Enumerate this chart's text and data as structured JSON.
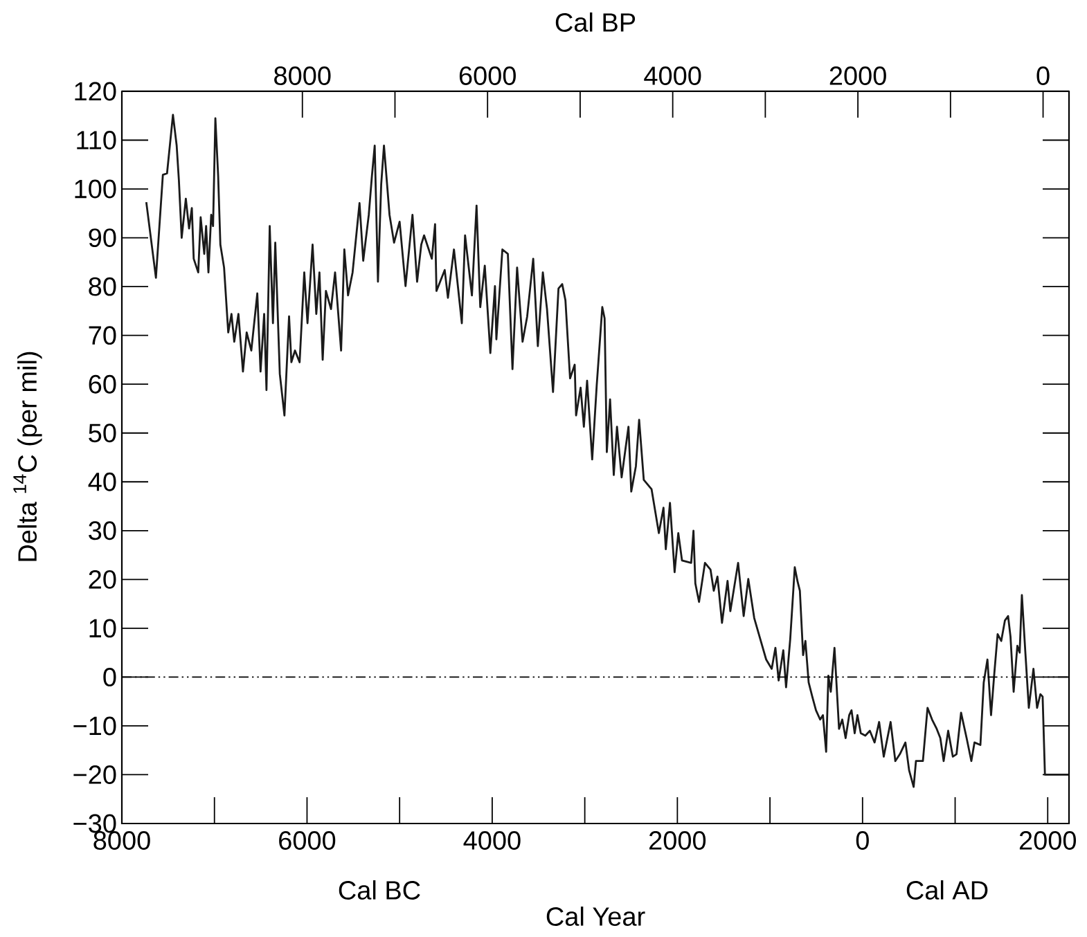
{
  "chart_data": {
    "type": "line",
    "xlabel": "Cal Year",
    "x2label": "Cal BP",
    "ylabel": "Delta $^{14}$C (per mil)",
    "annotations": [
      "Cal BC",
      "Cal AD"
    ],
    "xlim": [
      -8000,
      2230
    ],
    "xticks": [
      {
        "value": -8000,
        "label": "8000"
      },
      {
        "value": -6000,
        "label": "6000"
      },
      {
        "value": -4000,
        "label": "4000"
      },
      {
        "value": -2000,
        "label": "2000"
      },
      0,
      2000
    ],
    "x2lim": [
      9950,
      -280
    ],
    "x2ticks": [
      8000,
      6000,
      4000,
      2000,
      0
    ],
    "ylim": [
      -30,
      120
    ],
    "yticks": [
      {
        "value": -30,
        "label": "−30"
      },
      {
        "value": -20,
        "label": "−20"
      },
      {
        "value": -10,
        "label": "−10"
      },
      0,
      10,
      20,
      30,
      40,
      50,
      60,
      70,
      80,
      90,
      100,
      110,
      120
    ],
    "grid": false,
    "marker": "none",
    "line_style": "solid",
    "ref_lines": [
      {
        "axis": "y",
        "value": 0,
        "line_style": "dashed"
      }
    ],
    "series": [
      {
        "color": "#1a1a1a",
        "x": [
          -7736,
          -7632,
          -7557,
          -7512,
          -7448,
          -7408,
          -7384,
          -7354,
          -7309,
          -7274,
          -7244,
          -7224,
          -7175,
          -7149,
          -7110,
          -7090,
          -7065,
          -7035,
          -7015,
          -6990,
          -6960,
          -6936,
          -6896,
          -6851,
          -6816,
          -6786,
          -6741,
          -6692,
          -6652,
          -6602,
          -6537,
          -6502,
          -6463,
          -6438,
          -6403,
          -6368,
          -6343,
          -6294,
          -6244,
          -6194,
          -6169,
          -6130,
          -6080,
          -6030,
          -5995,
          -5940,
          -5900,
          -5866,
          -5831,
          -5796,
          -5741,
          -5697,
          -5632,
          -5597,
          -5557,
          -5508,
          -5433,
          -5393,
          -5333,
          -5299,
          -5269,
          -5234,
          -5199,
          -5169,
          -5109,
          -5060,
          -5000,
          -4936,
          -4861,
          -4811,
          -4766,
          -4736,
          -4652,
          -4617,
          -4602,
          -4513,
          -4478,
          -4413,
          -4328,
          -4293,
          -4219,
          -4169,
          -4129,
          -4080,
          -4020,
          -3970,
          -3955,
          -3890,
          -3831,
          -3781,
          -3731,
          -3672,
          -3622,
          -3557,
          -3507,
          -3453,
          -3408,
          -3343,
          -3284,
          -3244,
          -3209,
          -3159,
          -3109,
          -3094,
          -3045,
          -3010,
          -2975,
          -2920,
          -2871,
          -2811,
          -2786,
          -2762,
          -2727,
          -2687,
          -2652,
          -2602,
          -2528,
          -2498,
          -2448,
          -2413,
          -2363,
          -2279,
          -2200,
          -2150,
          -2125,
          -2080,
          -2030,
          -1990,
          -1950,
          -1851,
          -1826,
          -1806,
          -1766,
          -1702,
          -1642,
          -1607,
          -1567,
          -1518,
          -1458,
          -1428,
          -1344,
          -1284,
          -1234,
          -1170,
          -1120,
          -1041,
          -981,
          -941,
          -906,
          -856,
          -826,
          -781,
          -732,
          -702,
          -677,
          -642,
          -617,
          -582,
          -543,
          -503,
          -458,
          -428,
          -393,
          -369,
          -343,
          -303,
          -254,
          -219,
          -183,
          -144,
          -119,
          -85,
          -55,
          -19,
          30,
          79,
          130,
          179,
          229,
          303,
          354,
          403,
          463,
          503,
          552,
          577,
          652,
          702,
          751,
          801,
          840,
          876,
          925,
          975,
          1015,
          1064,
          1124,
          1175,
          1209,
          1273,
          1309,
          1349,
          1388,
          1423,
          1459,
          1498,
          1538,
          1572,
          1598,
          1632,
          1672,
          1697,
          1721,
          1757,
          1796,
          1846,
          1885,
          1921,
          1945,
          1970,
          2225
        ],
        "values": [
          97.3,
          81.8,
          102.9,
          103.2,
          115.2,
          108.9,
          101.8,
          90.0,
          98.0,
          91.9,
          96.1,
          85.7,
          82.9,
          94.2,
          86.7,
          92.4,
          82.9,
          94.7,
          92.4,
          114.5,
          102.7,
          88.6,
          83.9,
          70.6,
          74.4,
          68.7,
          74.4,
          62.6,
          70.6,
          66.9,
          78.6,
          62.6,
          74.4,
          58.8,
          92.4,
          72.5,
          89.0,
          62.1,
          53.6,
          73.9,
          64.5,
          66.9,
          64.5,
          82.9,
          72.5,
          88.6,
          74.4,
          82.9,
          65.0,
          79.1,
          75.4,
          82.9,
          66.9,
          87.6,
          78.2,
          82.9,
          97.1,
          85.3,
          94.7,
          102.7,
          108.9,
          81.0,
          100.9,
          108.9,
          94.7,
          89.0,
          93.3,
          80.1,
          94.7,
          81.0,
          88.6,
          90.5,
          85.7,
          92.8,
          79.1,
          83.4,
          77.7,
          87.6,
          72.5,
          90.5,
          78.2,
          96.6,
          75.8,
          84.3,
          66.4,
          80.1,
          69.2,
          87.6,
          86.7,
          63.1,
          83.9,
          68.7,
          73.9,
          85.7,
          67.8,
          82.9,
          75.4,
          58.4,
          79.6,
          80.5,
          77.2,
          61.2,
          64.0,
          53.6,
          59.3,
          51.3,
          60.7,
          44.6,
          59.8,
          75.8,
          73.5,
          46.1,
          56.9,
          41.4,
          51.3,
          40.9,
          51.3,
          38.0,
          43.2,
          52.7,
          40.4,
          38.5,
          29.5,
          34.7,
          26.2,
          35.7,
          21.5,
          29.5,
          23.9,
          23.4,
          30.0,
          19.2,
          15.4,
          23.4,
          22.0,
          17.7,
          20.6,
          11.1,
          19.7,
          13.5,
          23.4,
          12.5,
          20.1,
          12.1,
          8.8,
          3.6,
          1.7,
          6.0,
          -0.7,
          5.5,
          -2.1,
          7.8,
          22.5,
          19.6,
          17.7,
          4.5,
          7.4,
          -1.1,
          -4.0,
          -6.8,
          -8.7,
          -7.8,
          -15.3,
          0.3,
          -3.0,
          6.0,
          -10.6,
          -8.7,
          -12.5,
          -7.8,
          -6.8,
          -11.5,
          -7.8,
          -11.5,
          -12.0,
          -11.0,
          -13.4,
          -9.2,
          -16.3,
          -9.2,
          -17.2,
          -15.8,
          -13.4,
          -19.1,
          -22.5,
          -17.2,
          -17.2,
          -6.3,
          -8.7,
          -10.6,
          -12.5,
          -17.2,
          -11.0,
          -16.3,
          -15.8,
          -7.3,
          -12.5,
          -17.2,
          -13.4,
          -13.9,
          -1.1,
          3.6,
          -7.8,
          0.7,
          8.8,
          7.4,
          11.6,
          12.5,
          8.3,
          -3.0,
          6.4,
          5.0,
          16.8,
          5.5,
          -6.3,
          1.7,
          -6.3,
          -3.5,
          -4.0,
          -20.0,
          -20.0
        ]
      }
    ]
  }
}
